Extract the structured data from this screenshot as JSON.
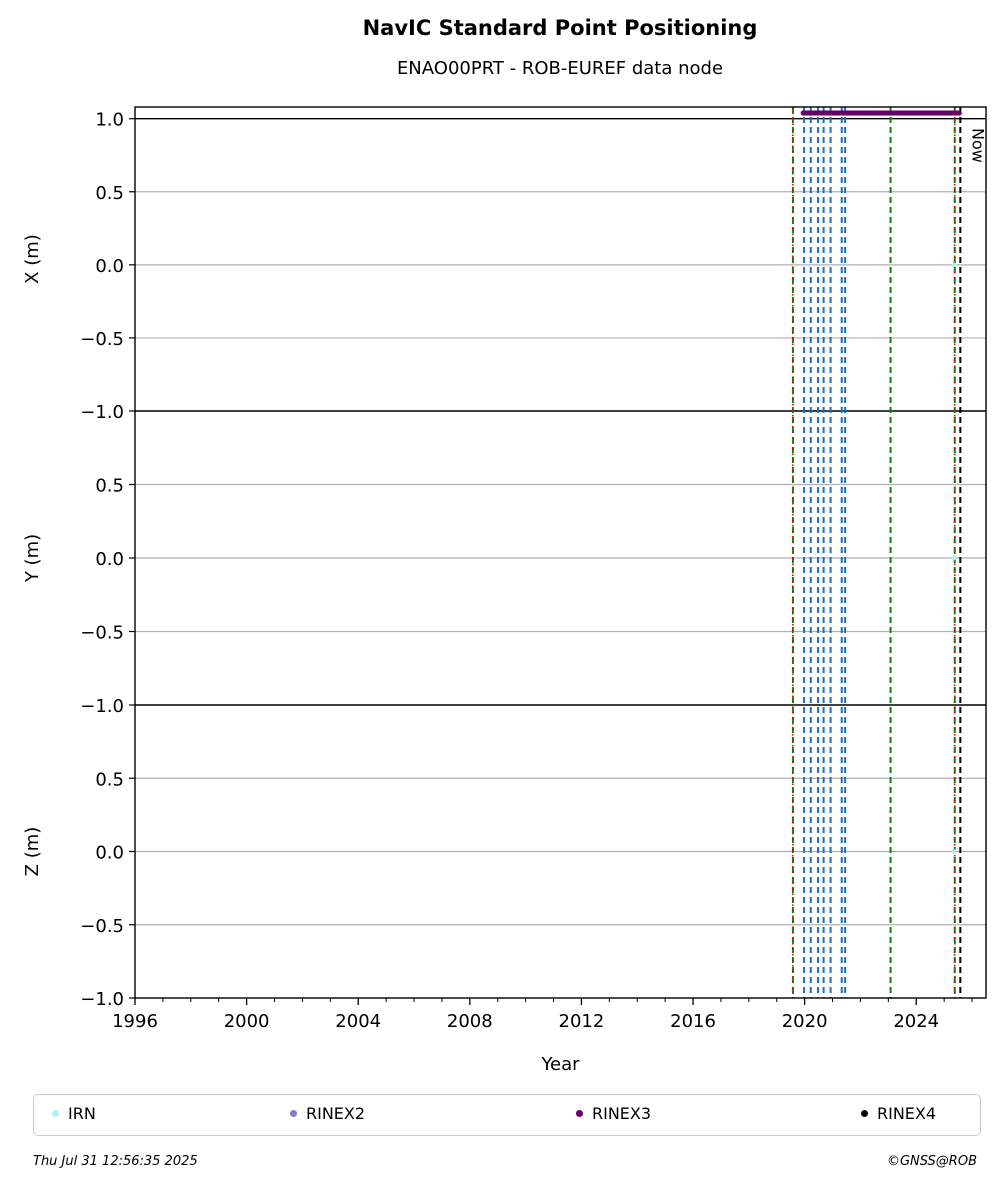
{
  "chart_data": {
    "type": "scatter",
    "title": "NavIC Standard Point Positioning",
    "subtitle": "ENAO00PRT - ROB-EUREF data node",
    "xlabel": "Year",
    "xlim": [
      1996.0,
      2026.5
    ],
    "x_ticks": [
      1996,
      2000,
      2004,
      2008,
      2012,
      2016,
      2020,
      2024
    ],
    "panels": [
      {
        "ylabel": "X (m)",
        "ylim": [
          -1.0,
          1.08
        ],
        "y_ticks": [
          1.0,
          0.5,
          0.0,
          -0.5,
          -1.0
        ],
        "tick_labels": [
          "1.0",
          "0.5",
          "0.0",
          "−0.5",
          "−1.0"
        ]
      },
      {
        "ylabel": "Y (m)",
        "ylim": [
          -1.0,
          1.0
        ],
        "y_ticks": [
          0.5,
          0.0,
          -0.5,
          -1.0
        ],
        "tick_labels": [
          "0.5",
          "0.0",
          "−0.5",
          "−1.0"
        ]
      },
      {
        "ylabel": "Z (m)",
        "ylim": [
          -1.0,
          1.0
        ],
        "y_ticks": [
          0.5,
          0.0,
          -0.5,
          -1.0
        ],
        "tick_labels": [
          "0.5",
          "0.0",
          "−0.5",
          "−1.0"
        ]
      }
    ],
    "grid": true,
    "legend_placement": "bottom",
    "series": [
      {
        "name": "IRN",
        "color": "#b2f0f0",
        "points": [
          [
            2025.35,
            0.0
          ]
        ]
      },
      {
        "name": "RINEX2",
        "color": "#8080c8",
        "points": []
      },
      {
        "name": "RINEX3",
        "color": "#660066",
        "x_range": [
          2019.95,
          2025.55
        ],
        "y_position": "above X panel"
      },
      {
        "name": "RINEX4",
        "color": "#110011",
        "points": []
      }
    ],
    "event_lines": {
      "red_dotted": [
        2019.58,
        2025.38
      ],
      "green_dashed": [
        2019.58,
        2023.08,
        2025.38
      ],
      "blue_dashed": [
        2019.98,
        2020.22,
        2020.48,
        2020.68,
        2020.93,
        2021.33,
        2021.45
      ],
      "black_dashed": [
        2025.58
      ]
    },
    "now_label": "Now",
    "legend": [
      "IRN",
      "RINEX2",
      "RINEX3",
      "RINEX4"
    ]
  },
  "footer": {
    "date": "Thu Jul 31 12:56:35 2025",
    "copyright": "©GNSS@ROB"
  }
}
